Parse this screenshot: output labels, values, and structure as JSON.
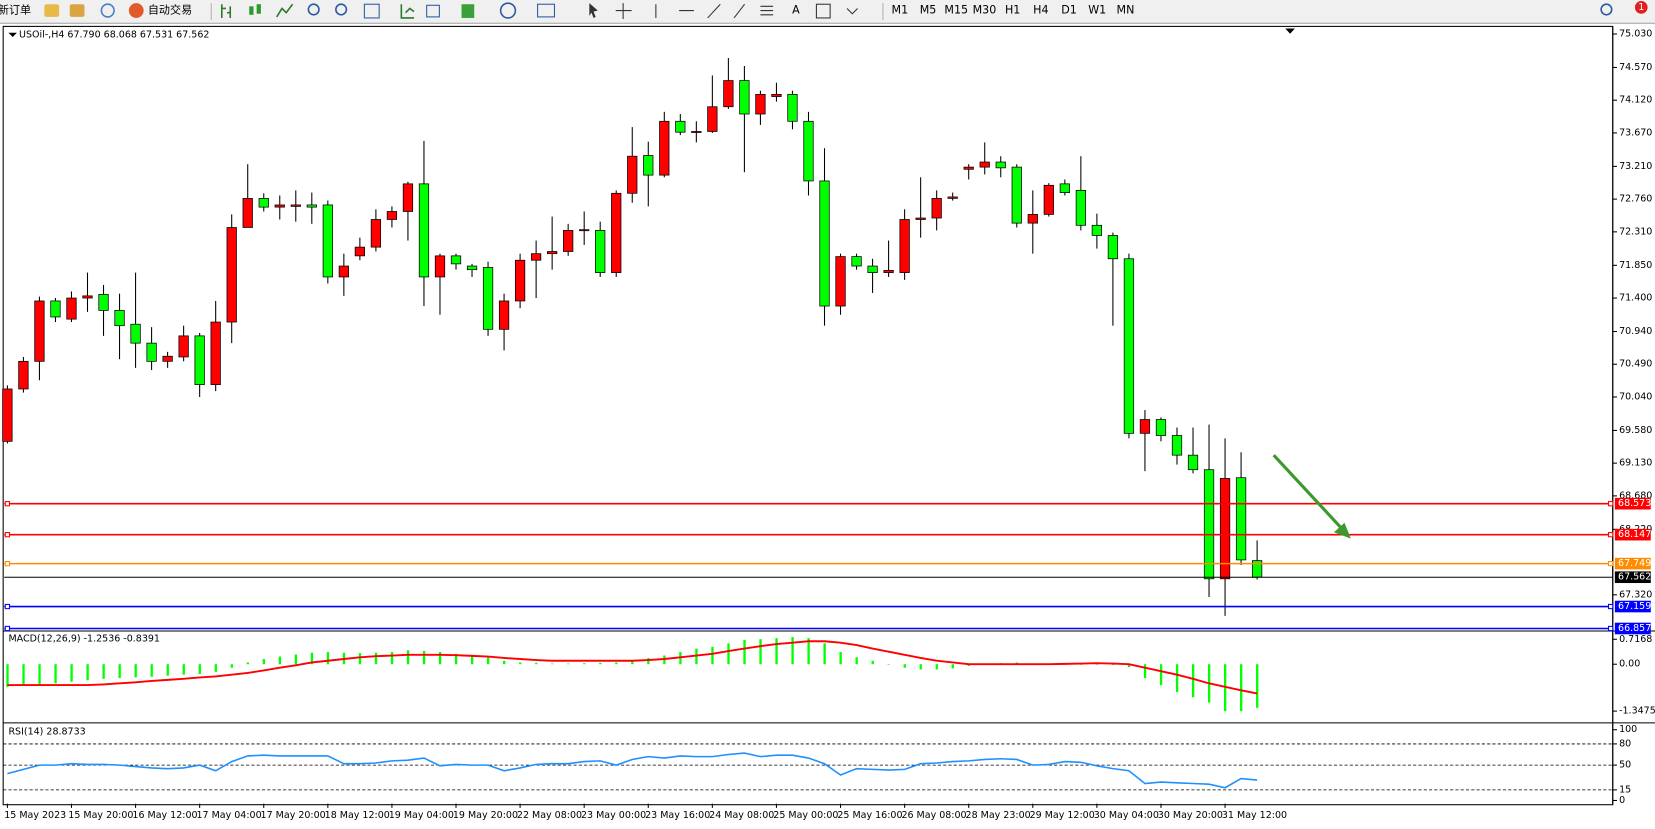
{
  "toolbar": {
    "new_order": "新订单",
    "auto_trading": "自动交易",
    "timeframes": [
      "M1",
      "M5",
      "M15",
      "M30",
      "H1",
      "H4",
      "D1",
      "W1",
      "MN"
    ],
    "notifications": 1
  },
  "chart_data": [
    {
      "type": "candlestick",
      "title": "USOil-,H4 67.790 68.068 67.531 67.562",
      "categories": [
        "15 May 2023",
        null,
        null,
        null,
        "15 May 20:00",
        null,
        null,
        null,
        "16 May 12:00",
        null,
        null,
        null,
        "17 May 04:00",
        null,
        null,
        null,
        "17 May 20:00",
        null,
        null,
        null,
        "18 May 12:00",
        null,
        null,
        null,
        "19 May 04:00",
        null,
        null,
        null,
        "19 May 20:00",
        null,
        null,
        null,
        "22 May 08:00",
        null,
        null,
        null,
        "23 May 00:00",
        null,
        null,
        null,
        "23 May 16:00",
        null,
        null,
        null,
        "24 May 08:00",
        null,
        null,
        null,
        "25 May 00:00",
        null,
        null,
        null,
        "25 May 16:00",
        null,
        null,
        null,
        "26 May 08:00",
        null,
        null,
        null,
        "28 May 23:00",
        null,
        null,
        null,
        "29 May 12:00",
        null,
        null,
        null,
        "30 May 04:00",
        null,
        null,
        null,
        "30 May 20:00",
        null,
        null,
        null,
        "31 May 12:00",
        null,
        null
      ],
      "open": [
        69.43,
        70.15,
        70.53,
        71.36,
        71.11,
        71.4,
        71.45,
        71.23,
        71.04,
        70.78,
        70.53,
        70.59,
        70.88,
        70.21,
        71.07,
        72.37,
        72.77,
        72.65,
        72.66,
        72.68,
        72.68,
        71.69,
        71.98,
        72.1,
        72.48,
        72.59,
        72.97,
        71.69,
        71.98,
        71.84,
        71.82,
        70.97,
        71.36,
        71.92,
        72.01,
        72.04,
        72.33,
        72.33,
        71.75,
        72.84,
        73.36,
        73.09,
        73.83,
        73.68,
        73.69,
        74.03,
        74.39,
        73.93,
        74.17,
        74.2,
        73.83,
        73.01,
        71.29,
        71.97,
        71.84,
        71.75,
        71.75,
        72.48,
        72.5,
        72.77,
        73.17,
        73.2,
        73.27,
        73.2,
        72.43,
        72.55,
        72.97,
        72.88,
        72.4,
        72.26,
        71.94,
        69.54,
        69.73,
        69.51,
        69.24,
        69.04,
        67.54,
        68.93,
        67.79
      ],
      "high": [
        70.2,
        70.59,
        71.42,
        71.4,
        71.49,
        71.75,
        71.58,
        71.46,
        71.75,
        71.0,
        70.66,
        71.02,
        70.92,
        71.36,
        72.55,
        73.24,
        72.84,
        72.81,
        72.88,
        72.85,
        72.74,
        72.01,
        72.23,
        72.62,
        72.66,
        73.0,
        73.56,
        72.01,
        72.01,
        71.87,
        71.9,
        71.46,
        72.01,
        72.19,
        72.52,
        72.42,
        72.59,
        72.45,
        72.88,
        73.75,
        73.55,
        73.96,
        73.93,
        73.83,
        74.46,
        74.7,
        74.59,
        74.25,
        74.36,
        74.25,
        73.96,
        73.46,
        72.01,
        72.01,
        71.94,
        72.19,
        72.62,
        73.06,
        72.88,
        72.85,
        73.24,
        73.54,
        73.35,
        73.24,
        72.88,
        72.98,
        73.03,
        73.35,
        72.56,
        72.3,
        72.01,
        69.86,
        69.76,
        69.62,
        69.62,
        69.66,
        69.47,
        69.28,
        68.068
      ],
      "low": [
        69.4,
        70.1,
        70.27,
        71.07,
        71.07,
        71.21,
        70.88,
        70.56,
        70.44,
        70.41,
        70.44,
        70.53,
        70.04,
        70.12,
        70.78,
        72.37,
        72.59,
        72.48,
        72.45,
        72.42,
        71.6,
        71.43,
        71.92,
        72.04,
        72.37,
        72.19,
        71.29,
        71.17,
        71.79,
        71.69,
        70.88,
        70.68,
        71.26,
        71.4,
        71.79,
        71.98,
        72.13,
        71.69,
        71.69,
        72.71,
        72.66,
        73.06,
        73.64,
        73.54,
        73.67,
        74.0,
        73.13,
        73.78,
        74.1,
        73.72,
        72.81,
        71.02,
        71.17,
        71.79,
        71.47,
        71.69,
        71.65,
        72.23,
        72.33,
        72.74,
        73.03,
        73.1,
        73.06,
        72.37,
        72.01,
        72.52,
        72.81,
        72.33,
        72.08,
        71.02,
        69.47,
        69.02,
        69.43,
        69.11,
        68.99,
        67.29,
        67.03,
        67.73,
        67.531
      ],
      "close": [
        70.15,
        70.53,
        71.36,
        71.14,
        71.4,
        71.43,
        71.23,
        71.02,
        70.78,
        70.53,
        70.6,
        70.88,
        70.21,
        71.07,
        72.37,
        72.77,
        72.65,
        72.68,
        72.68,
        72.65,
        71.69,
        71.84,
        72.1,
        72.48,
        72.59,
        72.97,
        71.69,
        71.98,
        71.87,
        71.79,
        70.97,
        71.36,
        71.92,
        72.01,
        72.04,
        72.33,
        72.34,
        71.75,
        72.84,
        73.35,
        73.09,
        73.83,
        73.68,
        73.69,
        74.03,
        74.39,
        73.93,
        74.2,
        74.2,
        73.83,
        73.01,
        71.29,
        71.97,
        71.84,
        71.75,
        71.78,
        72.48,
        72.5,
        72.77,
        72.79,
        73.2,
        73.27,
        73.19,
        72.43,
        72.55,
        72.95,
        72.85,
        72.4,
        72.26,
        71.94,
        69.54,
        69.73,
        69.51,
        69.24,
        69.04,
        67.54,
        68.92,
        67.8,
        67.562
      ],
      "up_color": "#ff0000",
      "down_color": "#00ff00",
      "ylim": [
        66.83,
        75.12
      ],
      "yticks": [
        {
          "value": 75.03,
          "label": "75.030"
        },
        {
          "value": 74.57,
          "label": "74.570"
        },
        {
          "value": 74.12,
          "label": "74.120"
        },
        {
          "value": 73.67,
          "label": "73.670"
        },
        {
          "value": 73.21,
          "label": "73.210"
        },
        {
          "value": 72.76,
          "label": "72.760"
        },
        {
          "value": 72.31,
          "label": "72.310"
        },
        {
          "value": 71.85,
          "label": "71.850"
        },
        {
          "value": 71.4,
          "label": "71.400"
        },
        {
          "value": 70.94,
          "label": "70.940"
        },
        {
          "value": 70.49,
          "label": "70.490"
        },
        {
          "value": 70.04,
          "label": "70.040"
        },
        {
          "value": 69.58,
          "label": "69.580"
        },
        {
          "value": 69.13,
          "label": "69.130"
        },
        {
          "value": 68.68,
          "label": "68.680"
        },
        {
          "value": 68.22,
          "label": "68.220"
        },
        {
          "value": 67.32,
          "label": "67.320"
        }
      ],
      "levels": [
        {
          "value": 68.573,
          "color": "#ff0000"
        },
        {
          "value": 68.147,
          "color": "#ff0000"
        },
        {
          "value": 67.749,
          "color": "#ff8c00"
        },
        {
          "value": 67.562,
          "color": "#000000"
        },
        {
          "value": 67.159,
          "color": "#0000ff"
        },
        {
          "value": 66.857,
          "color": "#0000ff"
        }
      ]
    },
    {
      "type": "macd",
      "title": "MACD(12,26,9) -1.2536 -0.8391",
      "values": [
        -0.65,
        -0.62,
        -0.58,
        -0.55,
        -0.5,
        -0.46,
        -0.42,
        -0.4,
        -0.38,
        -0.36,
        -0.33,
        -0.3,
        -0.28,
        -0.22,
        -0.1,
        0.05,
        0.15,
        0.22,
        0.28,
        0.33,
        0.35,
        0.33,
        0.32,
        0.33,
        0.35,
        0.4,
        0.38,
        0.35,
        0.3,
        0.27,
        0.2,
        0.1,
        0.05,
        0.04,
        0.02,
        0.02,
        0.03,
        0.04,
        0.05,
        0.1,
        0.18,
        0.25,
        0.35,
        0.45,
        0.5,
        0.6,
        0.7,
        0.72,
        0.75,
        0.78,
        0.75,
        0.6,
        0.35,
        0.2,
        0.1,
        0,
        -0.1,
        -0.15,
        -0.15,
        -0.12,
        -0.05,
        0,
        0.03,
        0.05,
        0.02,
        0,
        0,
        0,
        0,
        -0.02,
        -0.08,
        -0.4,
        -0.6,
        -0.8,
        -0.95,
        -1.1,
        -1.35,
        -1.35,
        -1.2536
      ],
      "color": "#00ff00",
      "signal": [
        -0.6,
        -0.6,
        -0.6,
        -0.6,
        -0.6,
        -0.6,
        -0.58,
        -0.55,
        -0.52,
        -0.48,
        -0.45,
        -0.42,
        -0.38,
        -0.35,
        -0.3,
        -0.25,
        -0.18,
        -0.1,
        -0.03,
        0.05,
        0.1,
        0.15,
        0.2,
        0.23,
        0.25,
        0.27,
        0.27,
        0.27,
        0.26,
        0.24,
        0.22,
        0.18,
        0.15,
        0.12,
        0.1,
        0.1,
        0.1,
        0.1,
        0.1,
        0.1,
        0.12,
        0.15,
        0.2,
        0.25,
        0.3,
        0.38,
        0.45,
        0.52,
        0.58,
        0.62,
        0.66,
        0.66,
        0.62,
        0.55,
        0.45,
        0.36,
        0.27,
        0.18,
        0.1,
        0.05,
        0,
        0,
        0,
        0,
        0,
        0,
        0.01,
        0.02,
        0.03,
        0.02,
        0,
        -0.1,
        -0.2,
        -0.3,
        -0.42,
        -0.55,
        -0.65,
        -0.75,
        -0.8391
      ],
      "signal_color": "#ff0000",
      "ylim": [
        -1.64,
        0.94
      ],
      "yticks": [
        0.7168,
        {
          "value": 0,
          "label": "0.00"
        },
        -1.3475
      ]
    },
    {
      "type": "line",
      "title": "RSI(14) 28.8733",
      "values": [
        38,
        44,
        50,
        50,
        52,
        51,
        51,
        50,
        48,
        46,
        45,
        46,
        50,
        42,
        55,
        63,
        64,
        63,
        63,
        63,
        63,
        52,
        52,
        53,
        56,
        57,
        60,
        49,
        51,
        50,
        50,
        42,
        46,
        51,
        52,
        52,
        55,
        56,
        50,
        58,
        62,
        60,
        63,
        62,
        62,
        65,
        67,
        62,
        64,
        64,
        60,
        52,
        36,
        45,
        44,
        43,
        44,
        52,
        53,
        55,
        56,
        58,
        59,
        58,
        50,
        51,
        55,
        54,
        49,
        45,
        42,
        24,
        26,
        25,
        24,
        23,
        18,
        31,
        28.8733
      ],
      "color": "#1e90ff",
      "ylim": [
        -4.5,
        107.5
      ],
      "yticks": [
        100,
        80,
        50,
        15,
        0
      ],
      "levels": [
        80,
        50,
        15
      ]
    }
  ]
}
